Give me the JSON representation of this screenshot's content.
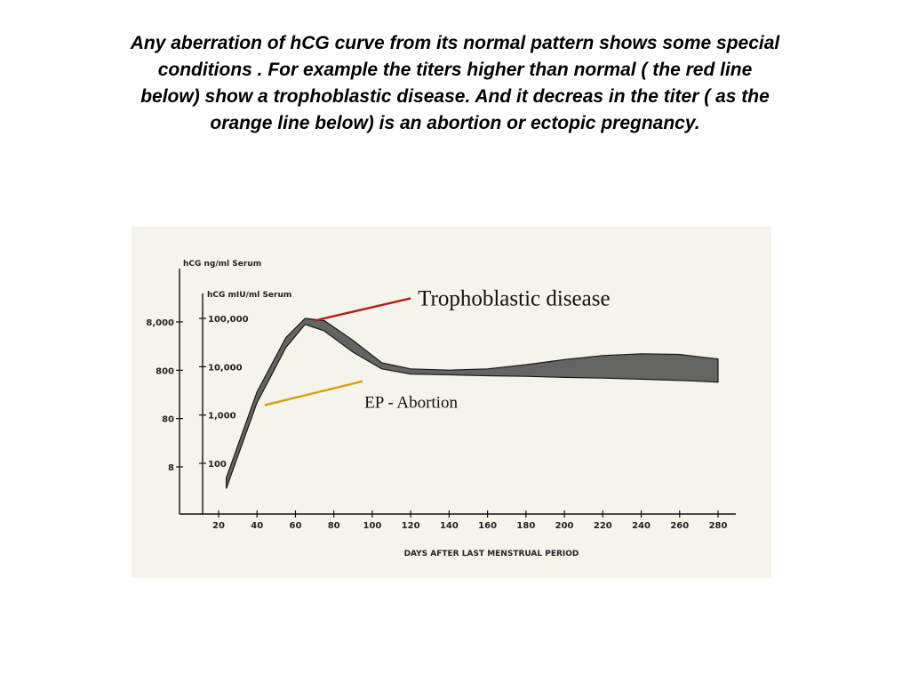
{
  "slide": {
    "text_lines": [
      "Any aberration of hCG  curve from its normal pattern shows some special",
      "conditions . For example the titers higher than normal ( the red line",
      "below) show a trophoblastic disease. And it decreas in the titer ( as the",
      "orange line below) is an abortion or ectopic  pregnancy."
    ]
  },
  "chart_data": {
    "type": "area",
    "xlabel": "DAYS AFTER LAST MENSTRUAL PERIOD",
    "ylabel_outer": "hCG ng/ml Serum",
    "ylabel_inner": "hCG mIU/ml Serum",
    "x_ticks": [
      "20",
      "40",
      "60",
      "80",
      "100",
      "120",
      "140",
      "160",
      "180",
      "200",
      "220",
      "240",
      "260",
      "280"
    ],
    "y_outer_ticks": [
      "8,000",
      "800",
      "80",
      "8"
    ],
    "y_inner_ticks": [
      "100,000",
      "10,000",
      "1,000",
      "100"
    ],
    "xlim": [
      20,
      280
    ],
    "y_scale": "log",
    "ylim_mIU": [
      20,
      300000
    ],
    "series": [
      {
        "x": [
          24,
          40,
          55,
          65,
          75,
          90,
          105,
          120,
          140,
          160,
          180,
          200,
          220,
          240,
          260,
          270,
          280
        ],
        "upper": [
          50,
          3000,
          40000,
          100000,
          90000,
          35000,
          12000,
          9000,
          8500,
          9000,
          11000,
          14000,
          17000,
          18500,
          18000,
          16000,
          14500
        ],
        "lower": [
          30,
          1800,
          25000,
          75000,
          55000,
          20000,
          9000,
          7000,
          6800,
          6500,
          6300,
          6000,
          5800,
          5500,
          5200,
          5000,
          4800
        ]
      }
    ],
    "annotations": [
      {
        "text": "Trophoblastic disease",
        "line_color": "#b01e1e",
        "from": [
          70,
          90000
        ],
        "to": [
          120,
          260000
        ]
      },
      {
        "text": "EP - Abortion",
        "line_color": "#d4a00a",
        "from": [
          44,
          1600
        ],
        "to": [
          95,
          5000
        ]
      }
    ],
    "colors": {
      "band_fill": "#4a4a4a",
      "axis": "#111111"
    }
  }
}
